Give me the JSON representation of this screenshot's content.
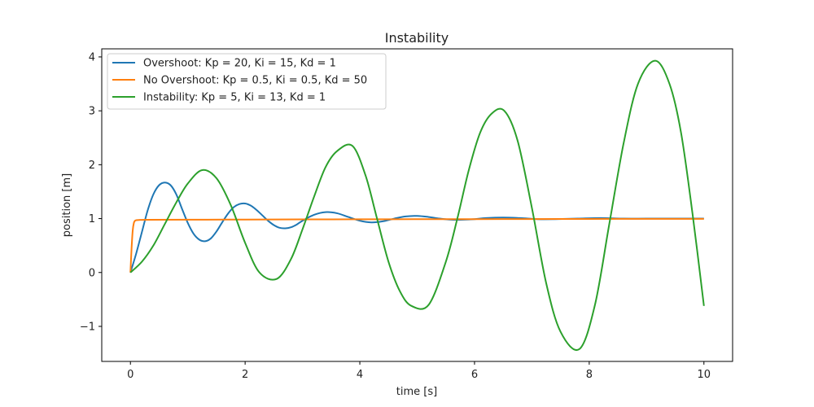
{
  "chart_data": {
    "type": "line",
    "title": "Instability",
    "xlabel": "time [s]",
    "ylabel": "position [m]",
    "xlim": [
      -0.5,
      10.5
    ],
    "ylim": [
      -1.65,
      4.15
    ],
    "xticks": [
      0,
      2,
      4,
      6,
      8,
      10
    ],
    "xtick_labels": [
      "0",
      "2",
      "4",
      "6",
      "8",
      "10"
    ],
    "yticks": [
      -1,
      0,
      1,
      2,
      3,
      4
    ],
    "ytick_labels": [
      "−1",
      "0",
      "1",
      "2",
      "3",
      "4"
    ],
    "grid": false,
    "legend_position": "top-left",
    "series": [
      {
        "name": "Overshoot: Kp = 20, Ki = 15, Kd = 1",
        "color": "#1f77b4",
        "x": [
          0,
          0.1,
          0.2,
          0.3,
          0.4,
          0.5,
          0.6,
          0.7,
          0.8,
          0.9,
          1.0,
          1.1,
          1.2,
          1.3,
          1.4,
          1.5,
          1.6,
          1.7,
          1.8,
          1.9,
          2.0,
          2.1,
          2.2,
          2.3,
          2.4,
          2.5,
          2.6,
          2.7,
          2.8,
          2.9,
          3.0,
          3.2,
          3.4,
          3.6,
          3.8,
          4.0,
          4.2,
          4.4,
          4.6,
          4.8,
          5.0,
          5.2,
          5.4,
          5.6,
          5.8,
          6.0,
          6.2,
          6.5,
          6.8,
          7.1,
          7.4,
          7.8,
          8.2,
          8.6,
          9.0,
          9.5,
          10.0
        ],
        "y": [
          0,
          0.35,
          0.75,
          1.15,
          1.45,
          1.62,
          1.67,
          1.62,
          1.45,
          1.18,
          0.92,
          0.72,
          0.61,
          0.58,
          0.63,
          0.76,
          0.93,
          1.09,
          1.21,
          1.27,
          1.28,
          1.24,
          1.16,
          1.06,
          0.96,
          0.88,
          0.83,
          0.82,
          0.84,
          0.89,
          0.96,
          1.07,
          1.12,
          1.1,
          1.03,
          0.96,
          0.93,
          0.95,
          1.0,
          1.04,
          1.05,
          1.03,
          1.0,
          0.98,
          0.98,
          0.99,
          1.01,
          1.02,
          1.01,
          0.99,
          0.99,
          1.0,
          1.01,
          1.0,
          1.0,
          1.0,
          1.0
        ]
      },
      {
        "name": "No Overshoot: Kp = 0.5, Ki = 0.5, Kd = 50",
        "color": "#ff7f0e",
        "x": [
          0,
          0.02,
          0.04,
          0.06,
          0.08,
          0.1,
          0.15,
          0.3,
          1,
          2,
          3,
          4,
          5,
          6,
          7,
          8,
          9,
          10
        ],
        "y": [
          0,
          0.45,
          0.78,
          0.92,
          0.96,
          0.97,
          0.975,
          0.978,
          0.98,
          0.982,
          0.985,
          0.987,
          0.989,
          0.99,
          0.992,
          0.994,
          0.995,
          0.996
        ]
      },
      {
        "name": "Instability: Kp = 5, Ki = 13, Kd = 1",
        "color": "#2ca02c",
        "x": [
          0,
          0.2,
          0.4,
          0.6,
          0.8,
          1.0,
          1.25,
          1.5,
          1.75,
          2.0,
          2.25,
          2.55,
          2.8,
          3.0,
          3.2,
          3.4,
          3.6,
          3.87,
          4.1,
          4.3,
          4.5,
          4.7,
          4.9,
          5.2,
          5.5,
          5.7,
          5.9,
          6.1,
          6.3,
          6.52,
          6.75,
          7.0,
          7.25,
          7.5,
          7.83,
          8.1,
          8.35,
          8.6,
          8.85,
          9.15,
          9.4,
          9.6,
          9.8,
          10.0
        ],
        "y": [
          0,
          0.2,
          0.5,
          0.9,
          1.3,
          1.65,
          1.9,
          1.75,
          1.25,
          0.55,
          0.0,
          -0.12,
          0.25,
          0.8,
          1.4,
          1.95,
          2.25,
          2.35,
          1.8,
          1.0,
          0.2,
          -0.35,
          -0.62,
          -0.6,
          0.2,
          1.0,
          1.9,
          2.6,
          2.95,
          3.0,
          2.45,
          1.2,
          -0.2,
          -1.1,
          -1.42,
          -0.6,
          0.9,
          2.4,
          3.5,
          3.93,
          3.5,
          2.6,
          1.1,
          -0.62
        ]
      }
    ]
  }
}
